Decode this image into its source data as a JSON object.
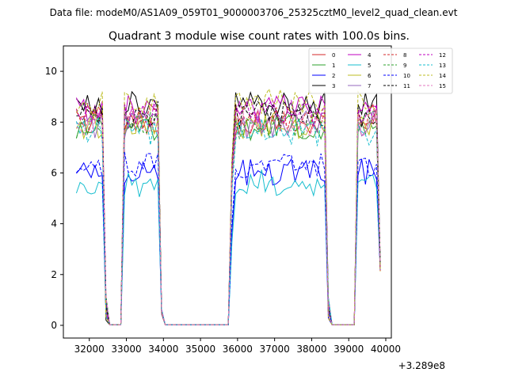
{
  "suptitle": "Data file: modeM0/AS1A09_059T01_9000003706_25325cztM0_level2_quad_clean.evt",
  "chart_data": {
    "type": "line",
    "title": "Quadrant 3 module wise count rates with 100.0s bins.",
    "xlabel": "",
    "ylabel": "",
    "x_offset_label": "+3.289e8",
    "xlim": [
      31300,
      40150
    ],
    "ylim": [
      -0.5,
      11.0
    ],
    "xticks": [
      32000,
      33000,
      34000,
      35000,
      36000,
      37000,
      38000,
      39000,
      40000
    ],
    "yticks": [
      0,
      2,
      4,
      6,
      8,
      10
    ],
    "grid": false,
    "legend_position": "top-right",
    "legend_columns": 4,
    "segments": [
      {
        "start": 31650,
        "end": 32350,
        "drop": 32450,
        "zeroEnd": 32850
      },
      {
        "start": 32950,
        "end": 33850,
        "drop": 33950,
        "zeroEnd": 35750
      },
      {
        "start": 35850,
        "end": 38350,
        "drop": 38450,
        "zeroEnd": 39150
      },
      {
        "start": 39250,
        "end": 39750,
        "drop": null,
        "zeroEnd": null
      }
    ],
    "series": [
      {
        "name": "0",
        "color": "#d62728",
        "dash": "solid",
        "level": 8.0
      },
      {
        "name": "1",
        "color": "#2ca02c",
        "dash": "solid",
        "level": 7.8
      },
      {
        "name": "2",
        "color": "#0000ff",
        "dash": "solid",
        "level": 6.0
      },
      {
        "name": "3",
        "color": "#000000",
        "dash": "solid",
        "level": 8.7
      },
      {
        "name": "4",
        "color": "#c000c0",
        "dash": "solid",
        "level": 8.5
      },
      {
        "name": "5",
        "color": "#17becf",
        "dash": "solid",
        "level": 5.6
      },
      {
        "name": "6",
        "color": "#bcbd22",
        "dash": "solid",
        "level": 7.9
      },
      {
        "name": "7",
        "color": "#9467bd",
        "dash": "solid",
        "level": 7.9
      },
      {
        "name": "8",
        "color": "#d62728",
        "dash": "dashed",
        "level": 8.2
      },
      {
        "name": "9",
        "color": "#2ca02c",
        "dash": "dashed",
        "level": 7.9
      },
      {
        "name": "10",
        "color": "#0000ff",
        "dash": "dashed",
        "level": 6.3
      },
      {
        "name": "11",
        "color": "#000000",
        "dash": "dashed",
        "level": 8.3
      },
      {
        "name": "12",
        "color": "#c000c0",
        "dash": "dashed",
        "level": 8.3
      },
      {
        "name": "13",
        "color": "#17becf",
        "dash": "dashed",
        "level": 7.6
      },
      {
        "name": "14",
        "color": "#bcbd22",
        "dash": "dashed",
        "level": 8.8
      },
      {
        "name": "15",
        "color": "#e377c2",
        "dash": "dashed",
        "level": 8.0
      }
    ]
  }
}
